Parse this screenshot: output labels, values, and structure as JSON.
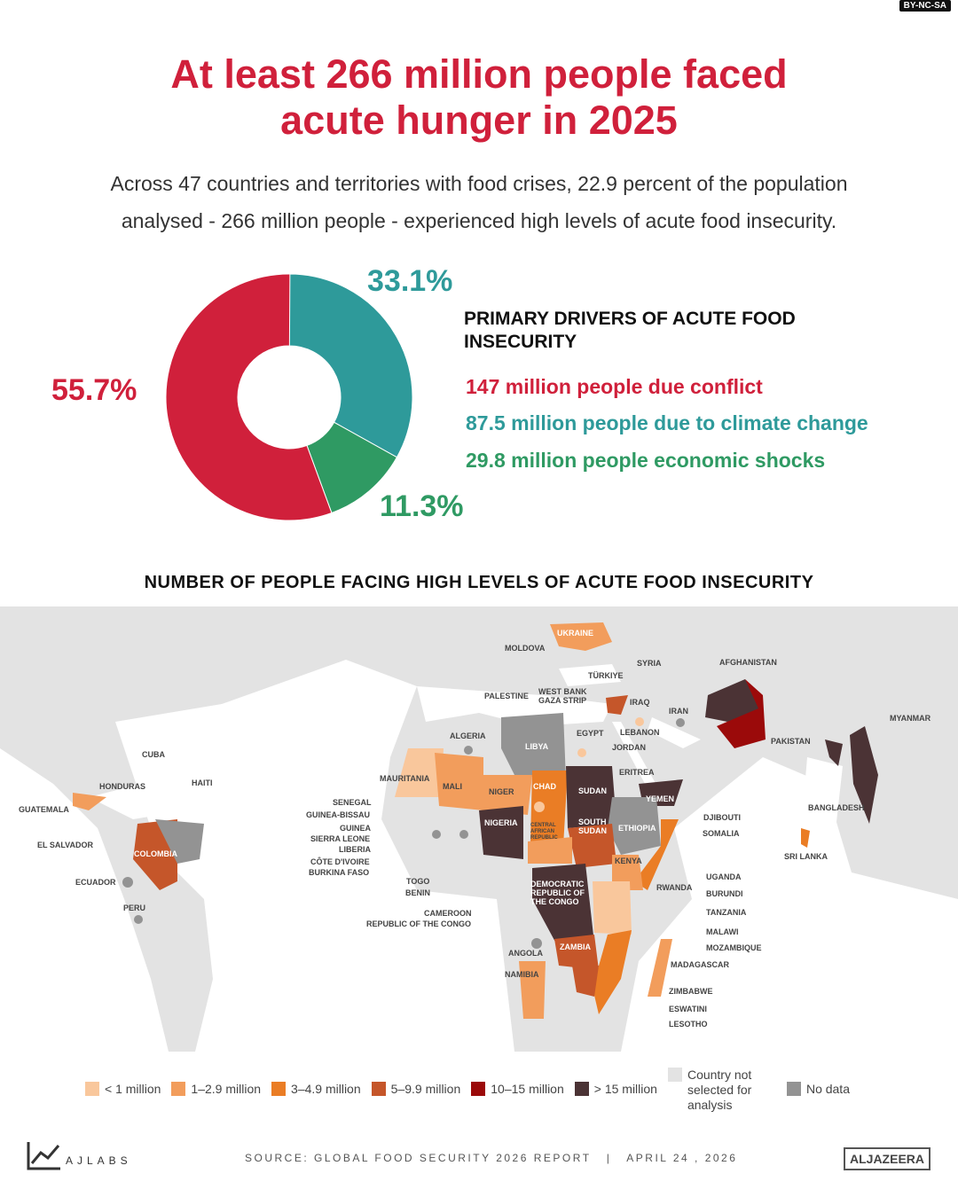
{
  "license": "BY-NC-SA",
  "title_line1": "At least 266 million people faced",
  "title_line2": "acute hunger in 2025",
  "subtitle_line1": "Across 47 countries and territories with food crises, 22.9 percent of the population",
  "subtitle_line2": "analysed - 266 million people - experienced high levels of acute food  insecurity.",
  "chart_data": {
    "type": "pie",
    "title": "PRIMARY DRIVERS OF ACUTE FOOD INSECURITY",
    "donut": true,
    "slices": [
      {
        "label": "33.1%",
        "value": 33.1,
        "color": "#2e9a9a",
        "legend": "87.5 million people due to climate change"
      },
      {
        "label": "11.3%",
        "value": 11.3,
        "color": "#2f9a63",
        "legend": "29.8 million people economic shocks"
      },
      {
        "label": "55.7%",
        "value": 55.7,
        "color": "#d0203b",
        "legend": "147 million people due conflict"
      }
    ]
  },
  "map": {
    "title": "NUMBER OF PEOPLE FACING HIGH LEVELS OF ACUTE FOOD INSECURITY",
    "labels": [
      "UKRAINE",
      "MOLDOVA",
      "SYRIA",
      "AFGHANISTAN",
      "TÜRKIYE",
      "PALESTINE",
      "WEST BANK",
      "GAZA STRIP",
      "IRAQ",
      "IRAN",
      "MYANMAR",
      "EGYPT",
      "LEBANON",
      "PAKISTAN",
      "ALGERIA",
      "LIBYA",
      "JORDAN",
      "CUBA",
      "HAITI",
      "HONDURAS",
      "ERITREA",
      "MAURITANIA",
      "MALI",
      "NIGER",
      "CHAD",
      "SUDAN",
      "YEMEN",
      "GUATEMALA",
      "SENEGAL",
      "GUINEA-BISSAU",
      "GUINEA",
      "SIERRA LEONE",
      "LIBERIA",
      "CÔTE D'IVOIRE",
      "BURKINA FASO",
      "NIGERIA",
      "DJIBOUTI",
      "SOMALIA",
      "ETHIOPIA",
      "SOUTH SUDAN",
      "CENTRAL AFRICAN REPUBLIC",
      "BANGLADESH",
      "SRI LANKA",
      "EL SALVADOR",
      "COLOMBIA",
      "ECUADOR",
      "PERU",
      "KENYA",
      "TOGO",
      "BENIN",
      "DEMOCRATIC REPUBLIC OF THE CONGO",
      "UGANDA",
      "RWANDA",
      "BURUNDI",
      "CAMEROON",
      "REPUBLIC OF THE CONGO",
      "TANZANIA",
      "MALAWI",
      "MOZAMBIQUE",
      "ANGOLA",
      "ZAMBIA",
      "MADAGASCAR",
      "NAMIBIA",
      "ZIMBABWE",
      "ESWATINI",
      "LESOTHO"
    ]
  },
  "legend": [
    {
      "label": "< 1 million",
      "color": "#f9c79c"
    },
    {
      "label": "1–2.9 million",
      "color": "#f29d5c"
    },
    {
      "label": "3–4.9 million",
      "color": "#ea7d25"
    },
    {
      "label": "5–9.9 million",
      "color": "#c5562a"
    },
    {
      "label": "10–15 million",
      "color": "#9b0a0a"
    },
    {
      "label": "> 15 million",
      "color": "#4b3335"
    },
    {
      "label": "Country not selected for analysis",
      "color": "#e3e3e3"
    },
    {
      "label": "No data",
      "color": "#939393"
    }
  ],
  "footer": {
    "brand": "AJLABS",
    "source": "SOURCE: GLOBAL FOOD SECURITY 2026 REPORT   |   APRIL 24 , 2026",
    "logo": "ALJAZEERA"
  }
}
